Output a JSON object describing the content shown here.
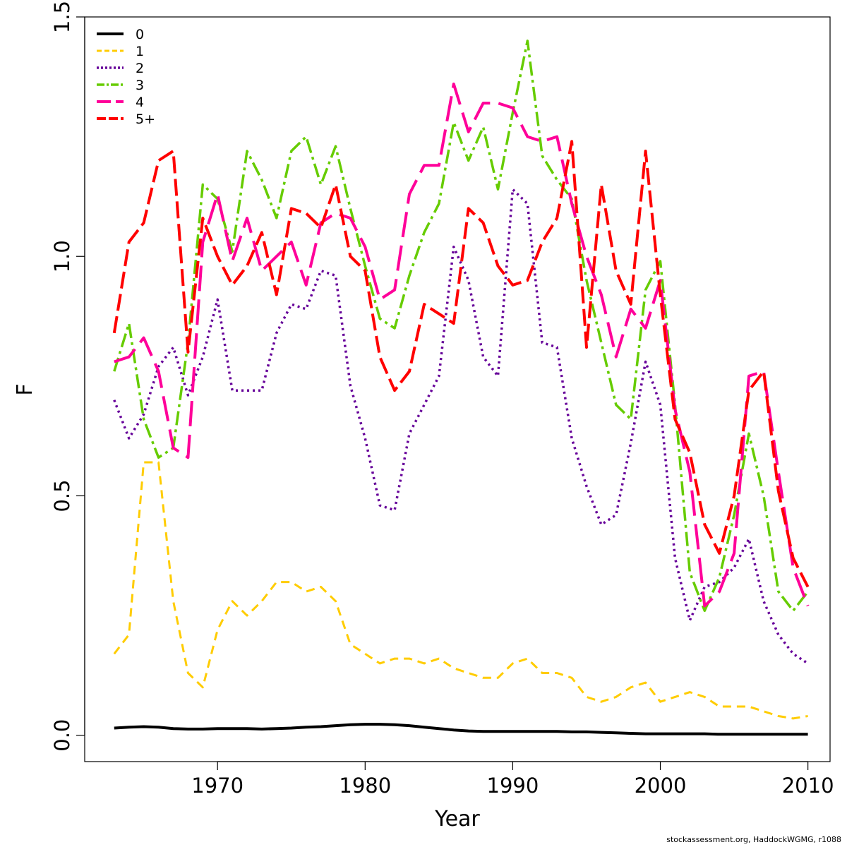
{
  "chart_data": {
    "type": "line",
    "xlabel": "Year",
    "ylabel": "F",
    "xlim": [
      1961,
      2011.5
    ],
    "ylim": [
      -0.055,
      1.5
    ],
    "xticks": [
      1970,
      1980,
      1990,
      2000,
      2010
    ],
    "yticks": [
      0.0,
      0.5,
      1.0,
      1.5
    ],
    "ytick_labels": [
      "0.0",
      "0.5",
      "1.0",
      "1.5"
    ],
    "grid": false,
    "legend_position": "top-left",
    "x": [
      1963,
      1964,
      1965,
      1966,
      1967,
      1968,
      1969,
      1970,
      1971,
      1972,
      1973,
      1974,
      1975,
      1976,
      1977,
      1978,
      1979,
      1980,
      1981,
      1982,
      1983,
      1984,
      1985,
      1986,
      1987,
      1988,
      1989,
      1990,
      1991,
      1992,
      1993,
      1994,
      1995,
      1996,
      1997,
      1998,
      1999,
      2000,
      2001,
      2002,
      2003,
      2004,
      2005,
      2006,
      2007,
      2008,
      2009,
      2010
    ],
    "series": [
      {
        "name": "0",
        "color": "#000000",
        "dash": "solid",
        "width": 4,
        "values": [
          0.015,
          0.017,
          0.018,
          0.017,
          0.014,
          0.013,
          0.013,
          0.014,
          0.014,
          0.014,
          0.013,
          0.014,
          0.015,
          0.017,
          0.018,
          0.02,
          0.022,
          0.023,
          0.023,
          0.022,
          0.02,
          0.017,
          0.014,
          0.011,
          0.009,
          0.008,
          0.008,
          0.008,
          0.008,
          0.008,
          0.008,
          0.007,
          0.007,
          0.006,
          0.005,
          0.004,
          0.003,
          0.003,
          0.003,
          0.003,
          0.003,
          0.002,
          0.002,
          0.002,
          0.002,
          0.002,
          0.002,
          0.002
        ]
      },
      {
        "name": "1",
        "color": "#FFCC00",
        "dash": "12,8",
        "width": 3,
        "values": [
          0.17,
          0.21,
          0.57,
          0.57,
          0.28,
          0.13,
          0.1,
          0.22,
          0.28,
          0.25,
          0.28,
          0.32,
          0.32,
          0.3,
          0.31,
          0.28,
          0.19,
          0.17,
          0.15,
          0.16,
          0.16,
          0.15,
          0.16,
          0.14,
          0.13,
          0.12,
          0.12,
          0.15,
          0.16,
          0.13,
          0.13,
          0.12,
          0.08,
          0.07,
          0.08,
          0.1,
          0.11,
          0.07,
          0.08,
          0.09,
          0.08,
          0.06,
          0.06,
          0.06,
          0.05,
          0.04,
          0.035,
          0.04
        ]
      },
      {
        "name": "2",
        "color": "#660099",
        "dash": "3,5",
        "width": 3.5,
        "values": [
          0.7,
          0.62,
          0.67,
          0.77,
          0.81,
          0.71,
          0.79,
          0.91,
          0.72,
          0.72,
          0.72,
          0.84,
          0.9,
          0.89,
          0.97,
          0.96,
          0.73,
          0.62,
          0.48,
          0.47,
          0.63,
          0.69,
          0.75,
          1.02,
          0.95,
          0.79,
          0.75,
          1.14,
          1.11,
          0.82,
          0.81,
          0.62,
          0.52,
          0.44,
          0.46,
          0.61,
          0.78,
          0.69,
          0.37,
          0.24,
          0.31,
          0.32,
          0.35,
          0.41,
          0.28,
          0.21,
          0.17,
          0.15
        ]
      },
      {
        "name": "3",
        "color": "#66CC00",
        "dash": "20,6,4,6",
        "width": 3.5,
        "values": [
          0.76,
          0.86,
          0.66,
          0.58,
          0.6,
          0.82,
          1.15,
          1.12,
          1.01,
          1.22,
          1.16,
          1.08,
          1.22,
          1.25,
          1.15,
          1.23,
          1.1,
          0.98,
          0.87,
          0.85,
          0.96,
          1.05,
          1.11,
          1.28,
          1.2,
          1.27,
          1.14,
          1.3,
          1.45,
          1.21,
          1.16,
          1.12,
          0.95,
          0.82,
          0.69,
          0.66,
          0.93,
          0.99,
          0.69,
          0.34,
          0.26,
          0.33,
          0.46,
          0.63,
          0.5,
          0.3,
          0.26,
          0.3
        ]
      },
      {
        "name": "4",
        "color": "#FF0099",
        "dash": "36,12",
        "width": 4,
        "values": [
          0.78,
          0.79,
          0.83,
          0.76,
          0.6,
          0.58,
          1.03,
          1.13,
          0.99,
          1.08,
          0.97,
          1.0,
          1.03,
          0.94,
          1.07,
          1.09,
          1.08,
          1.02,
          0.91,
          0.93,
          1.13,
          1.19,
          1.19,
          1.36,
          1.26,
          1.32,
          1.32,
          1.31,
          1.25,
          1.24,
          1.25,
          1.11,
          1.0,
          0.92,
          0.79,
          0.89,
          0.85,
          0.95,
          0.68,
          0.55,
          0.27,
          0.3,
          0.38,
          0.75,
          0.76,
          0.55,
          0.35,
          0.27
        ]
      },
      {
        "name": "5+",
        "color": "#FF0000",
        "dash": "24,8",
        "width": 4,
        "values": [
          0.84,
          1.03,
          1.07,
          1.2,
          1.22,
          0.8,
          1.08,
          1.0,
          0.94,
          0.98,
          1.05,
          0.92,
          1.1,
          1.09,
          1.06,
          1.15,
          1.0,
          0.97,
          0.79,
          0.72,
          0.76,
          0.9,
          0.88,
          0.86,
          1.1,
          1.07,
          0.98,
          0.94,
          0.95,
          1.03,
          1.08,
          1.24,
          0.81,
          1.15,
          0.97,
          0.9,
          1.22,
          0.92,
          0.66,
          0.59,
          0.44,
          0.38,
          0.5,
          0.72,
          0.76,
          0.51,
          0.37,
          0.31
        ]
      }
    ]
  },
  "credit_text": "stockassessment.org, HaddockWGMG, r1088"
}
